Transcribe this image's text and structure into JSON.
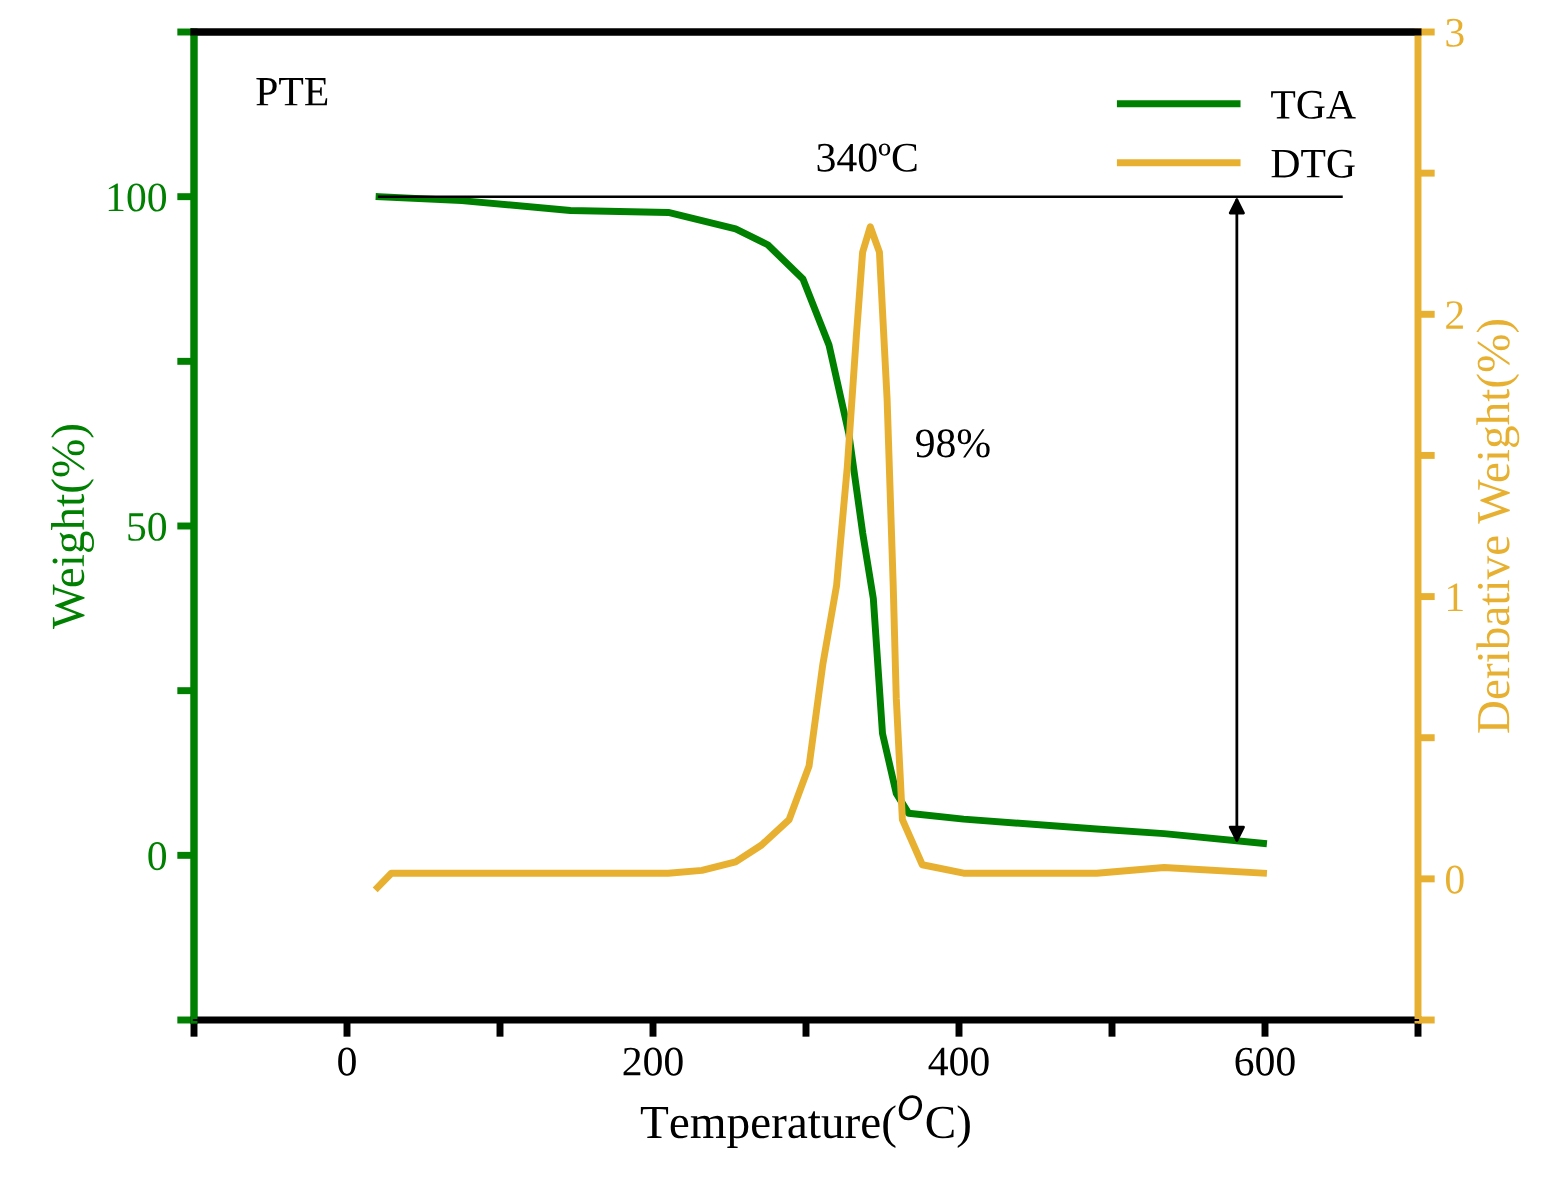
{
  "chart_data": {
    "type": "line",
    "xlabel": "Temperature($^{O}$C)",
    "ylabel": "Weight(%)",
    "y2label": "Deribative Weight(%)",
    "xlim": [
      -100,
      700
    ],
    "xticks": [
      {
        "value": -100,
        "label": null
      },
      0,
      {
        "value": 100,
        "label": null
      },
      200,
      {
        "value": 300,
        "label": null
      },
      400,
      {
        "value": 500,
        "label": null
      },
      600,
      {
        "value": 700,
        "label": null
      }
    ],
    "ylim": [
      -25,
      125
    ],
    "yticks": [
      {
        "value": -25,
        "label": null
      },
      0,
      {
        "value": 25,
        "label": null
      },
      50,
      {
        "value": 75,
        "label": null
      },
      100,
      {
        "value": 125,
        "label": null
      }
    ],
    "y2lim": [
      -0.5,
      3
    ],
    "y2ticks": [
      {
        "value": -0.5,
        "label": null
      },
      0,
      {
        "value": 0.5,
        "label": null
      },
      1,
      {
        "value": 1.5,
        "label": null
      },
      2,
      {
        "value": 2.5,
        "label": null
      },
      3
    ],
    "series": [
      {
        "name": "TGA",
        "color": "#008000",
        "x": [
          21,
          75,
          146,
          210,
          254,
          275,
          298,
          315,
          328,
          337,
          344,
          350,
          359,
          367,
          403,
          490,
          534,
          599
        ],
        "values": [
          100,
          99.4,
          97.9,
          97.6,
          95.1,
          92.7,
          87.5,
          77.5,
          64,
          49,
          39,
          18.5,
          9.4,
          6.4,
          5.5,
          4,
          3.3,
          1.8
        ]
      },
      {
        "name": "DTG",
        "color": "#e8b030",
        "axis": "y2",
        "x": [
          20,
          29,
          210,
          232,
          254,
          271,
          289,
          302,
          311,
          320,
          327,
          333,
          337,
          342,
          348,
          353,
          357,
          359,
          363,
          376,
          403,
          490,
          534,
          599
        ],
        "values": [
          -0.03,
          0.02,
          0.02,
          0.03,
          0.06,
          0.12,
          0.21,
          0.4,
          0.76,
          1.04,
          1.46,
          1.93,
          2.22,
          2.31,
          2.22,
          1.7,
          1.04,
          0.64,
          0.21,
          0.05,
          0.02,
          0.02,
          0.04,
          0.02
        ]
      }
    ],
    "ref_lines": [
      {
        "axis": "y",
        "value": 100,
        "color": "#000000"
      }
    ],
    "annotations": [
      "PTE",
      "340ºC",
      "98%"
    ],
    "legend": "top right",
    "grid": false
  }
}
